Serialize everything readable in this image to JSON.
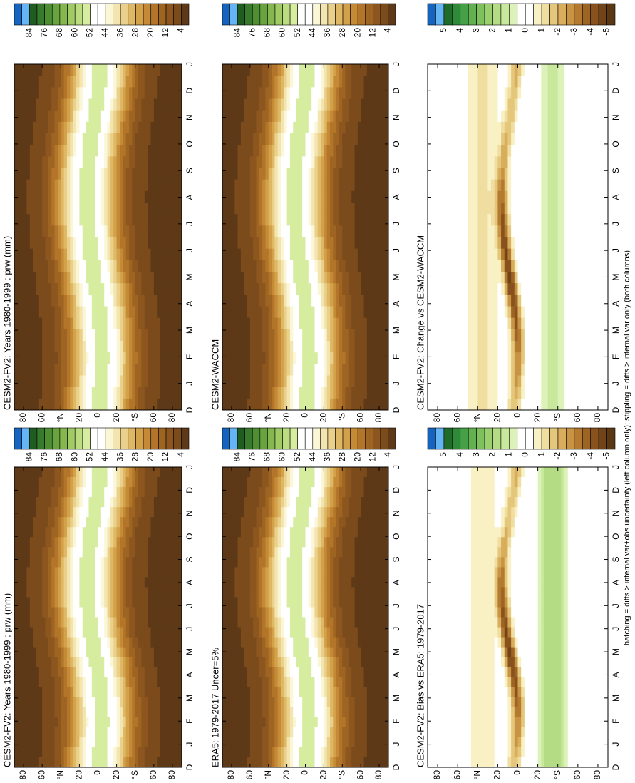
{
  "figure": {
    "months": [
      "D",
      "J",
      "F",
      "M",
      "A",
      "M",
      "J",
      "J",
      "A",
      "S",
      "O",
      "N",
      "D",
      "J"
    ],
    "ylim": [
      90,
      -90
    ],
    "lat_ticks": [
      80,
      60,
      {
        "value": 40,
        "label": "°N"
      },
      20,
      0,
      {
        "value": -20,
        "label": "20"
      },
      {
        "value": -40,
        "label": "°S"
      },
      {
        "value": -60,
        "label": "60"
      },
      {
        "value": -80,
        "label": "80"
      }
    ],
    "panels": [
      {
        "title": "CESM2-FV2: Years 1980-1999 : prw (mm)",
        "colorbar": {
          "ticks": [
            84,
            76,
            68,
            60,
            52,
            44,
            36,
            28,
            20,
            12,
            4
          ],
          "colors": [
            "#1565c0",
            "#64b5f6",
            "#1e5c22",
            "#387a2b",
            "#4f8f34",
            "#69a33f",
            "#84b74d",
            "#a0ca63",
            "#bcdc80",
            "#d6ec9f",
            "#ffffff",
            "#ffffff",
            "#fbf6d6",
            "#f3e5b0",
            "#ead08a",
            "#dfb865",
            "#d2a14a",
            "#c48a35",
            "#b27529",
            "#9e6422",
            "#8c561e",
            "#7b4b1c",
            "#5e3917"
          ]
        }
      },
      {
        "title": "CESM2-FV2: Years 1980-1999 : prw (mm)",
        "colorbar": {
          "ticks": [
            84,
            76,
            68,
            60,
            52,
            44,
            36,
            28,
            20,
            12,
            4
          ],
          "colors": [
            "#1565c0",
            "#64b5f6",
            "#1e5c22",
            "#387a2b",
            "#4f8f34",
            "#69a33f",
            "#84b74d",
            "#a0ca63",
            "#bcdc80",
            "#d6ec9f",
            "#ffffff",
            "#ffffff",
            "#fbf6d6",
            "#f3e5b0",
            "#ead08a",
            "#dfb865",
            "#d2a14a",
            "#c48a35",
            "#b27529",
            "#9e6422",
            "#8c561e",
            "#7b4b1c",
            "#5e3917"
          ]
        }
      },
      {
        "title": "ERA5: 1979-2017 Uncer=5%",
        "colorbar": {
          "ticks": [
            84,
            76,
            68,
            60,
            52,
            44,
            36,
            28,
            20,
            12,
            4
          ],
          "colors": [
            "#1565c0",
            "#64b5f6",
            "#1e5c22",
            "#387a2b",
            "#4f8f34",
            "#69a33f",
            "#84b74d",
            "#a0ca63",
            "#bcdc80",
            "#d6ec9f",
            "#ffffff",
            "#ffffff",
            "#fbf6d6",
            "#f3e5b0",
            "#ead08a",
            "#dfb865",
            "#d2a14a",
            "#c48a35",
            "#b27529",
            "#9e6422",
            "#8c561e",
            "#7b4b1c",
            "#5e3917"
          ]
        }
      },
      {
        "title": "CESM2-WACCM",
        "colorbar": {
          "ticks": [
            84,
            76,
            68,
            60,
            52,
            44,
            36,
            28,
            20,
            12,
            4
          ],
          "colors": [
            "#1565c0",
            "#64b5f6",
            "#1e5c22",
            "#387a2b",
            "#4f8f34",
            "#69a33f",
            "#84b74d",
            "#a0ca63",
            "#bcdc80",
            "#d6ec9f",
            "#ffffff",
            "#ffffff",
            "#fbf6d6",
            "#f3e5b0",
            "#ead08a",
            "#dfb865",
            "#d2a14a",
            "#c48a35",
            "#b27529",
            "#9e6422",
            "#8c561e",
            "#7b4b1c",
            "#5e3917"
          ]
        }
      },
      {
        "title": "CESM2-FV2: Bias vs ERA5: 1979-2017",
        "colorbar": {
          "ticks": [
            5,
            4,
            3,
            2,
            1,
            0,
            -1,
            -2,
            -3,
            -4,
            -5
          ],
          "colors": [
            "#1565c0",
            "#64b5f6",
            "#1e6b2a",
            "#2f8a3a",
            "#45a046",
            "#62b04f",
            "#7fc05e",
            "#9bcf70",
            "#b3dc85",
            "#c8e89c",
            "#ddf2b8",
            "#ffffff",
            "#ffffff",
            "#f9f0c4",
            "#f0dea0",
            "#e5c77c",
            "#d8ad5b",
            "#c89443",
            "#b47a30",
            "#9e6424",
            "#87521d",
            "#704418",
            "#5b3814"
          ]
        }
      },
      {
        "title": "CESM2-FV2: Change vs CESM2-WACCM",
        "colorbar": {
          "ticks": [
            5,
            4,
            3,
            2,
            1,
            0,
            -1,
            -2,
            -3,
            -4,
            -5
          ],
          "colors": [
            "#1565c0",
            "#64b5f6",
            "#1e6b2a",
            "#2f8a3a",
            "#45a046",
            "#62b04f",
            "#7fc05e",
            "#9bcf70",
            "#b3dc85",
            "#c8e89c",
            "#ddf2b8",
            "#ffffff",
            "#ffffff",
            "#f9f0c4",
            "#f0dea0",
            "#e5c77c",
            "#d8ad5b",
            "#c89443",
            "#b47a30",
            "#9e6424",
            "#87521d",
            "#704418",
            "#5b3814"
          ]
        }
      }
    ],
    "footer": "hatching = diffs > internal var+obs uncertainty (left column only); stippling = diffs > internal var only (both columns)"
  }
}
